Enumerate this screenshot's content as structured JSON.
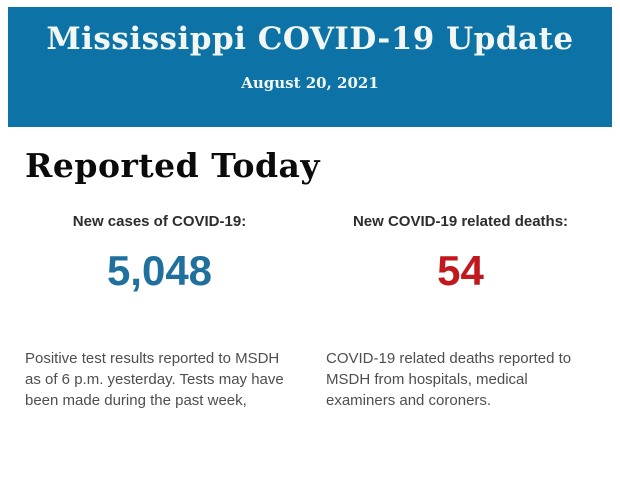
{
  "header": {
    "title": "Mississippi COVID-19 Update",
    "date": "August 20, 2021",
    "background_color": "#0d73a7",
    "text_color": "#f3f7f4"
  },
  "main": {
    "section_title": "Reported Today",
    "stats": [
      {
        "label": "New cases of COVID-19:",
        "value": "5,048",
        "value_color": "#20709e",
        "description": "Positive test results reported to MSDH as of 6 p.m. yesterday. Tests may have been made during the past week,"
      },
      {
        "label": "New COVID-19 related deaths:",
        "value": "54",
        "value_color": "#c0181d",
        "description": "COVID-19 related deaths reported to MSDH from hospitals, medical examiners and coroners."
      }
    ]
  }
}
